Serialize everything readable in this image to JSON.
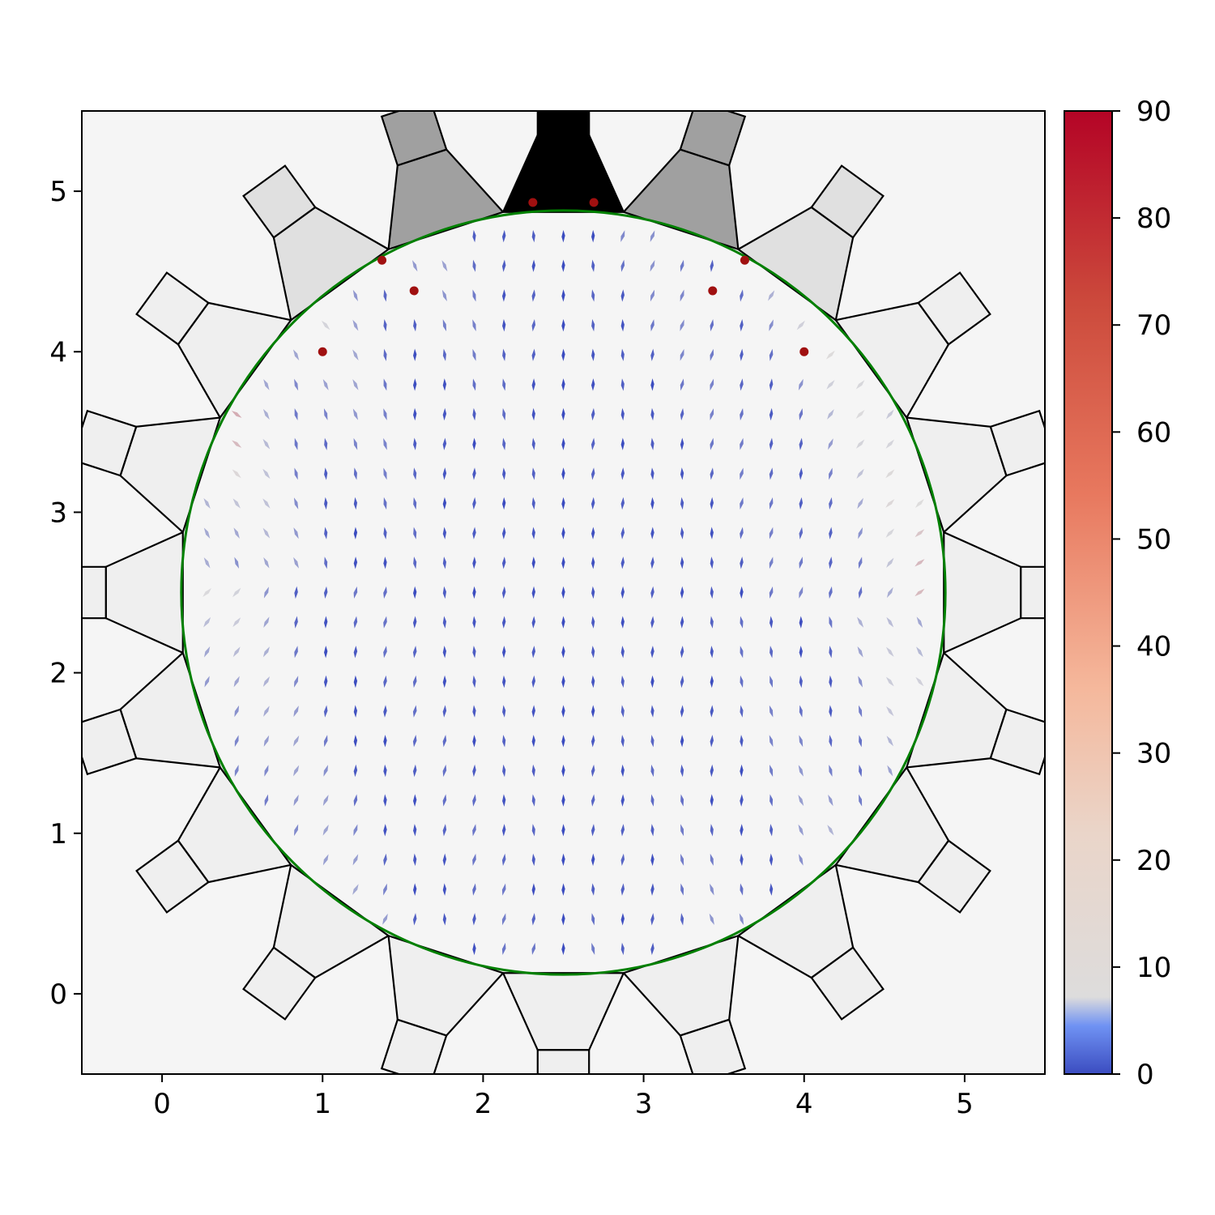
{
  "chart_data": {
    "type": "quiver",
    "title": "",
    "xlabel": "",
    "ylabel": "",
    "xlim": [
      -0.5,
      5.5
    ],
    "ylim": [
      -0.5,
      5.5
    ],
    "x_ticks": [
      "0",
      "1",
      "2",
      "3",
      "4",
      "5"
    ],
    "y_ticks": [
      "0",
      "1",
      "2",
      "3",
      "4",
      "5"
    ],
    "aspect": "equal",
    "grid": false,
    "background_color": "#f5f5f5",
    "field": {
      "description": "director field of rod-like particles in a circular cavity; arrow angle measured from the vertical (degrees)",
      "center": [
        2.5,
        2.5
      ],
      "radius": 2.38,
      "grid_spacing": 0.185,
      "orientation_unit": "degrees"
    },
    "boundary_circle": {
      "center": [
        2.5,
        2.5
      ],
      "radius": 2.38,
      "color": "#008000"
    },
    "defects": [
      {
        "x": 2.31,
        "y": 4.93
      },
      {
        "x": 2.69,
        "y": 4.93
      },
      {
        "x": 1.37,
        "y": 4.57
      },
      {
        "x": 3.63,
        "y": 4.57
      },
      {
        "x": 1.57,
        "y": 4.38
      },
      {
        "x": 3.43,
        "y": 4.38
      },
      {
        "x": 1.0,
        "y": 4.0
      },
      {
        "x": 4.0,
        "y": 4.0
      }
    ],
    "defect_color": "#a01010",
    "colorbar": {
      "colormap": "coolwarm",
      "min": 0,
      "max": 90,
      "ticks": [
        "0",
        "10",
        "20",
        "30",
        "40",
        "50",
        "60",
        "70",
        "80",
        "90"
      ],
      "colors": [
        "#3b4cc0",
        "#dddcdc",
        "#b40426"
      ]
    },
    "ring": {
      "segments": 20,
      "inner_radius": 2.52,
      "outer_radius": 2.85,
      "pad_size": 0.32,
      "top_inlet_fill": "#000000",
      "near_inlet_fill": "#a0a0a0",
      "second_fill": "#e0e0e0",
      "default_fill": "#efefef"
    }
  }
}
